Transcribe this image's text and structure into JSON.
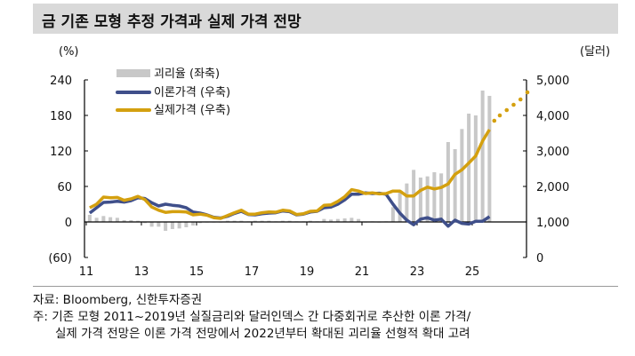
{
  "title": "금 기존 모형 추정 가격과 실제 가격 전망",
  "footer": {
    "source": "자료: Bloomberg, 신한투자증권",
    "note1": "주: 기존 모형 2011~2019년 실질금리와 달러인덱스 간 다중회귀로 추산한 이론 가격/",
    "note2": "실제 가격 전망은 이론 가격 전망에서 2022년부터 확대된 괴리율 선형적 확대 고려"
  },
  "chart_data": {
    "type": "bar+line",
    "x_ticks": [
      "11",
      "13",
      "15",
      "17",
      "19",
      "21",
      "23",
      "25"
    ],
    "x_tick_values": [
      2011,
      2013,
      2015,
      2017,
      2019,
      2021,
      2023,
      2025
    ],
    "x_range": [
      2011,
      2027
    ],
    "left_axis": {
      "label": "(%)",
      "range": [
        -60,
        240
      ],
      "ticks": [
        "(60)",
        "0",
        "60",
        "120",
        "180",
        "240"
      ],
      "tick_values": [
        -60,
        0,
        60,
        120,
        180,
        240
      ]
    },
    "right_axis": {
      "label": "(달러)",
      "range": [
        0,
        5000
      ],
      "ticks": [
        "0",
        "1,000",
        "2,000",
        "3,000",
        "4,000",
        "5,000"
      ],
      "tick_values": [
        0,
        1000,
        2000,
        3000,
        4000,
        5000
      ]
    },
    "legend": [
      "괴리율 (좌축)",
      "이론가격 (우축)",
      "실제가격 (우축)"
    ],
    "legend_placement": "top-left",
    "colors": {
      "gap": "#c8c8c8",
      "theoretical": "#3f4f8a",
      "actual": "#d4a00f"
    },
    "series": [
      {
        "name": "괴리율 (좌축)",
        "axis": "left",
        "type": "bar",
        "x": [
          2011.125,
          2011.375,
          2011.625,
          2011.875,
          2012.125,
          2012.375,
          2012.625,
          2012.875,
          2013.125,
          2013.375,
          2013.625,
          2013.875,
          2014.125,
          2014.375,
          2014.625,
          2014.875,
          2015.125,
          2015.375,
          2015.625,
          2015.875,
          2016.125,
          2016.375,
          2016.625,
          2016.875,
          2017.125,
          2017.375,
          2017.625,
          2017.875,
          2018.125,
          2018.375,
          2018.625,
          2018.875,
          2019.125,
          2019.375,
          2019.625,
          2019.875,
          2020.125,
          2020.375,
          2020.625,
          2020.875,
          2021.125,
          2021.375,
          2021.625,
          2021.875,
          2022.125,
          2022.375,
          2022.625,
          2022.875,
          2023.125,
          2023.375,
          2023.625,
          2023.875,
          2024.125,
          2024.375,
          2024.625,
          2024.875,
          2025.125,
          2025.375,
          2025.625
        ],
        "values": [
          12,
          7,
          10,
          8,
          7,
          3,
          3,
          2,
          -2,
          -8,
          -8,
          -15,
          -12,
          -11,
          -9,
          -6,
          -2,
          -1,
          -1,
          -1,
          2,
          2,
          2,
          1,
          2,
          2,
          2,
          1,
          2,
          2,
          1,
          1,
          2,
          1,
          5,
          4,
          5,
          6,
          7,
          5,
          -1,
          1,
          -1,
          1,
          25,
          50,
          65,
          88,
          75,
          77,
          84,
          82,
          135,
          123,
          157,
          183,
          180,
          222,
          213
        ]
      },
      {
        "name": "이론가격 (우축)",
        "axis": "right",
        "type": "line",
        "x": [
          2011.125,
          2011.375,
          2011.625,
          2011.875,
          2012.125,
          2012.375,
          2012.625,
          2012.875,
          2013.125,
          2013.375,
          2013.625,
          2013.875,
          2014.125,
          2014.375,
          2014.625,
          2014.875,
          2015.125,
          2015.375,
          2015.625,
          2015.875,
          2016.125,
          2016.375,
          2016.625,
          2016.875,
          2017.125,
          2017.375,
          2017.625,
          2017.875,
          2018.125,
          2018.375,
          2018.625,
          2018.875,
          2019.125,
          2019.375,
          2019.625,
          2019.875,
          2020.125,
          2020.375,
          2020.625,
          2020.875,
          2021.125,
          2021.375,
          2021.625,
          2021.875,
          2022.125,
          2022.375,
          2022.625,
          2022.875,
          2023.125,
          2023.375,
          2023.625,
          2023.875,
          2024.125,
          2024.375,
          2024.625,
          2024.875,
          2025.125,
          2025.375,
          2025.625
        ],
        "values": [
          1250,
          1400,
          1550,
          1560,
          1580,
          1560,
          1600,
          1680,
          1660,
          1540,
          1450,
          1500,
          1470,
          1450,
          1400,
          1280,
          1250,
          1200,
          1130,
          1110,
          1160,
          1240,
          1300,
          1210,
          1200,
          1230,
          1250,
          1260,
          1310,
          1290,
          1200,
          1220,
          1280,
          1300,
          1400,
          1420,
          1500,
          1620,
          1780,
          1780,
          1820,
          1800,
          1810,
          1780,
          1500,
          1250,
          1050,
          920,
          1080,
          1120,
          1050,
          1080,
          880,
          1050,
          960,
          940,
          1020,
          1020,
          1150
        ]
      },
      {
        "name": "실제가격 (우축)",
        "axis": "right",
        "type": "line",
        "x": [
          2011.125,
          2011.375,
          2011.625,
          2011.875,
          2012.125,
          2012.375,
          2012.625,
          2012.875,
          2013.125,
          2013.375,
          2013.625,
          2013.875,
          2014.125,
          2014.375,
          2014.625,
          2014.875,
          2015.125,
          2015.375,
          2015.625,
          2015.875,
          2016.125,
          2016.375,
          2016.625,
          2016.875,
          2017.125,
          2017.375,
          2017.625,
          2017.875,
          2018.125,
          2018.375,
          2018.625,
          2018.875,
          2019.125,
          2019.375,
          2019.625,
          2019.875,
          2020.125,
          2020.375,
          2020.625,
          2020.875,
          2021.125,
          2021.375,
          2021.625,
          2021.875,
          2022.125,
          2022.375,
          2022.625,
          2022.875,
          2023.125,
          2023.375,
          2023.625,
          2023.875,
          2024.125,
          2024.375,
          2024.625,
          2024.875,
          2025.125,
          2025.375,
          2025.625
        ],
        "values": [
          1400,
          1500,
          1700,
          1680,
          1690,
          1610,
          1650,
          1720,
          1630,
          1420,
          1330,
          1270,
          1290,
          1290,
          1280,
          1200,
          1220,
          1190,
          1120,
          1100,
          1180,
          1260,
          1330,
          1220,
          1220,
          1260,
          1280,
          1275,
          1330,
          1310,
          1210,
          1230,
          1300,
          1310,
          1470,
          1480,
          1580,
          1710,
          1910,
          1870,
          1800,
          1820,
          1790,
          1800,
          1870,
          1870,
          1730,
          1730,
          1890,
          1980,
          1930,
          1970,
          2070,
          2340,
          2470,
          2660,
          2860,
          3280,
          3600
        ]
      },
      {
        "axis": "right",
        "type": "dotted-line",
        "x": [
          2025.8,
          2026.0,
          2026.25,
          2026.5,
          2026.75,
          2027.0
        ],
        "values": [
          3850,
          4000,
          4150,
          4300,
          4450,
          4650
        ]
      }
    ]
  }
}
